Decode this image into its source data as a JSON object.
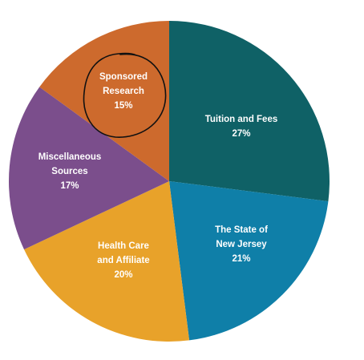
{
  "chart_data": {
    "type": "pie",
    "title": "",
    "start_angle_deg": 0,
    "direction": "clockwise",
    "slices": [
      {
        "name": "Tuition and Fees",
        "label_lines": [
          "Tuition and Fees"
        ],
        "value_label": "27%",
        "value": 27,
        "color": "#0f6166"
      },
      {
        "name": "The State of New Jersey",
        "label_lines": [
          "The State of",
          "New Jersey"
        ],
        "value_label": "21%",
        "value": 21,
        "color": "#0f7fa8"
      },
      {
        "name": "Health Care and Affiliate",
        "label_lines": [
          "Health Care",
          "and Affiliate"
        ],
        "value_label": "20%",
        "value": 20,
        "color": "#e8a22a"
      },
      {
        "name": "Miscellaneous Sources",
        "label_lines": [
          "Miscellaneous",
          "Sources"
        ],
        "value_label": "17%",
        "value": 17,
        "color": "#7b4e8c"
      },
      {
        "name": "Sponsored Research",
        "label_lines": [
          "Sponsored",
          "Research"
        ],
        "value_label": "15%",
        "value": 15,
        "color": "#cd6a2d"
      }
    ],
    "annotation": {
      "type": "hand-drawn-circle",
      "target": "Sponsored Research",
      "color": "#111111"
    }
  }
}
